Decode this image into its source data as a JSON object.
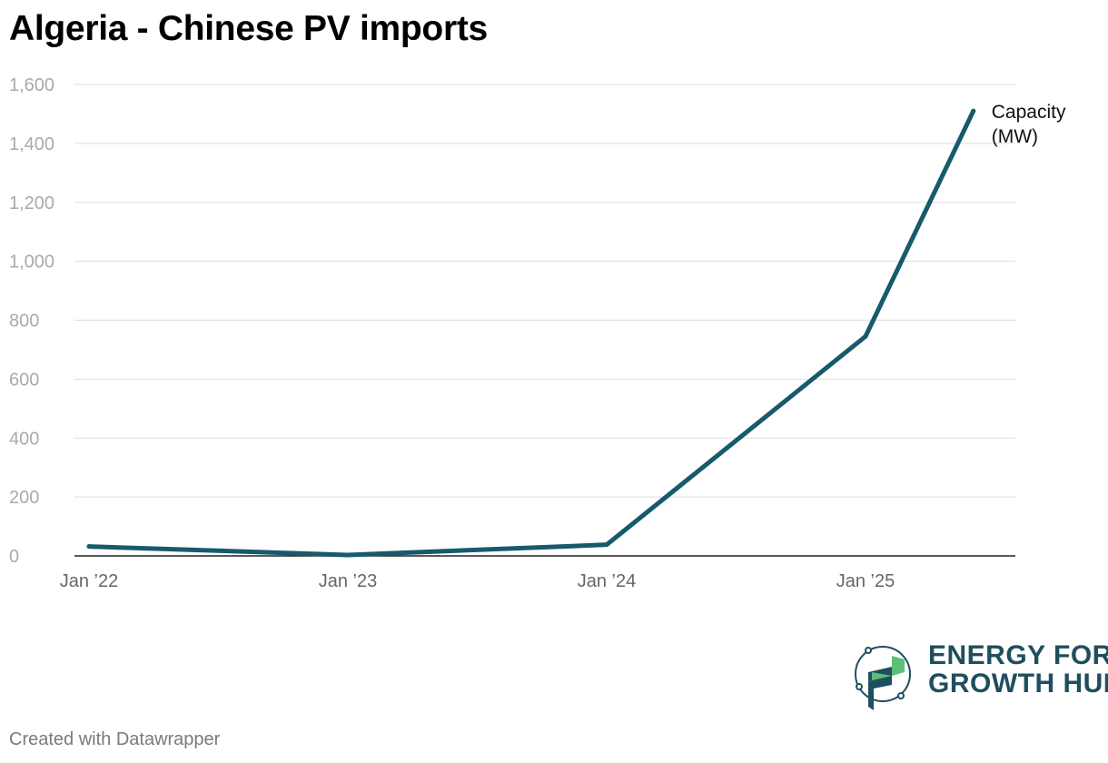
{
  "title": "Algeria - Chinese PV imports",
  "credit": "Created with Datawrapper",
  "logo": {
    "line1": "ENERGY FOR",
    "line2": "GROWTH HUB",
    "colors": {
      "text": "#1f4e5e",
      "green": "#5bbf7a"
    }
  },
  "chart_data": {
    "type": "line",
    "title": "Algeria - Chinese PV imports",
    "xlabel": "",
    "ylabel": "",
    "x": [
      "2022-01",
      "2023-01",
      "2024-01",
      "2025-01",
      "2025-06"
    ],
    "series": [
      {
        "name": "Capacity (MW)",
        "label_lines": [
          "Capacity",
          "(MW)"
        ],
        "values": [
          32,
          3,
          38,
          745,
          1510
        ],
        "color": "#175a6c"
      }
    ],
    "ylim": [
      0,
      1600
    ],
    "yticks": [
      0,
      200,
      400,
      600,
      800,
      1000,
      1200,
      1400,
      1600
    ],
    "ytick_labels": [
      "0",
      "200",
      "400",
      "600",
      "800",
      "1,000",
      "1,200",
      "1,400",
      "1,600"
    ],
    "xticks": [
      "2022-01",
      "2023-01",
      "2024-01",
      "2025-01"
    ],
    "xtick_labels": [
      "Jan ’22",
      "Jan ’23",
      "Jan ’24",
      "Jan ’25"
    ],
    "grid": true,
    "legend": "inline at line end"
  }
}
